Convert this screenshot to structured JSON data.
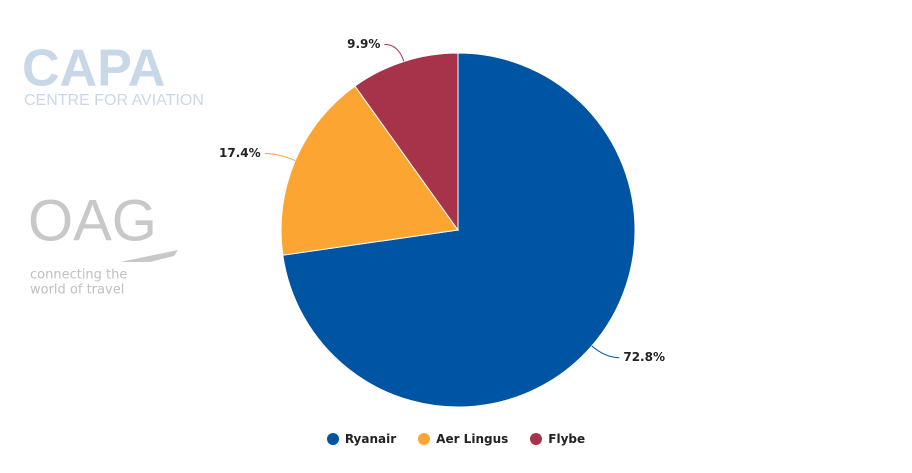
{
  "chart_data": {
    "type": "pie",
    "categories": [
      "Ryanair",
      "Aer Lingus",
      "Flybe"
    ],
    "values": [
      72.8,
      17.4,
      9.9
    ],
    "value_labels": [
      "72.8%",
      "17.4%",
      "9.9%"
    ],
    "colors": [
      "#0054a4",
      "#fda532",
      "#a6334a"
    ],
    "legend": "bottom"
  },
  "watermarks": {
    "capa": "CAPA",
    "capa_sub": "CENTRE FOR AVIATION",
    "oag": "OAG",
    "oag_sub": [
      "connecting the",
      "world of travel"
    ]
  }
}
